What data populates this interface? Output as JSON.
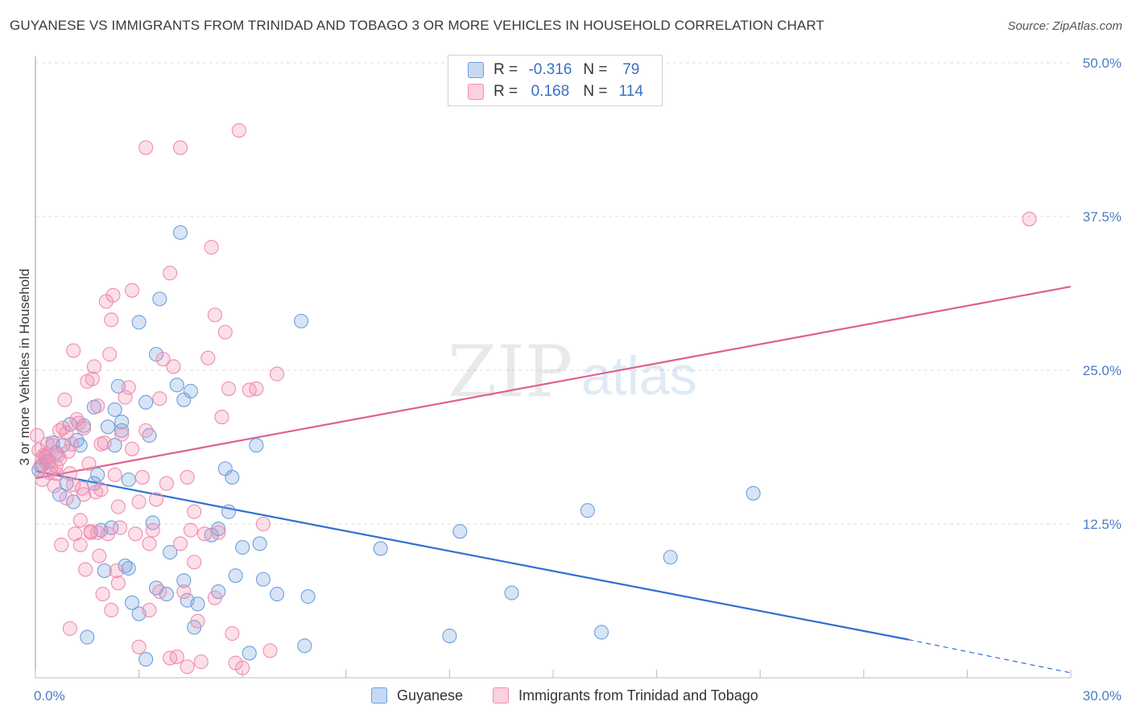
{
  "header": {
    "title": "GUYANESE VS IMMIGRANTS FROM TRINIDAD AND TOBAGO 3 OR MORE VEHICLES IN HOUSEHOLD CORRELATION CHART",
    "source": "Source: ZipAtlas.com"
  },
  "legend": {
    "r_label": "R =",
    "n_label": "N =",
    "rows": [
      {
        "r": "-0.316",
        "n": "79",
        "color": "#6f9fdc"
      },
      {
        "r": "0.168",
        "n": "114",
        "color": "#f08cb0"
      }
    ]
  },
  "watermark": {
    "zip": "ZIP",
    "atlas": "atlas"
  },
  "bottom_legend": [
    "Guyanese",
    "Immigrants from Trinidad and Tobago"
  ],
  "chart_data": {
    "type": "scatter",
    "ylabel": "3 or more Vehicles in Household",
    "xlabel": "",
    "xlim": [
      0,
      30
    ],
    "ylim": [
      0,
      50
    ],
    "x_tick_labels": [
      "0.0%",
      "30.0%"
    ],
    "y_tick_labels": [
      "12.5%",
      "25.0%",
      "37.5%",
      "50.0%"
    ],
    "y_ticks": [
      12.5,
      25.0,
      37.5,
      50.0
    ],
    "grid": true,
    "series": [
      {
        "name": "Guyanese",
        "color": "#6f9fdc",
        "line_color": "#2f6fd0",
        "trend": {
          "x0": 0,
          "y0": 16.8,
          "x1": 25.3,
          "y1": 3.1,
          "dash_to_x": 30,
          "dash_to_y": 0.4
        },
        "points": [
          [
            0.1,
            16.9
          ],
          [
            0.2,
            17.3
          ],
          [
            0.3,
            17.9
          ],
          [
            0.4,
            17.6
          ],
          [
            0.5,
            19.1
          ],
          [
            0.6,
            18.3
          ],
          [
            0.7,
            14.9
          ],
          [
            0.8,
            18.9
          ],
          [
            0.9,
            15.8
          ],
          [
            1.0,
            20.6
          ],
          [
            1.1,
            14.3
          ],
          [
            1.2,
            19.3
          ],
          [
            1.3,
            18.9
          ],
          [
            1.4,
            20.5
          ],
          [
            1.5,
            3.3
          ],
          [
            1.7,
            15.8
          ],
          [
            1.7,
            22.0
          ],
          [
            1.8,
            16.5
          ],
          [
            1.9,
            12.0
          ],
          [
            2.0,
            8.7
          ],
          [
            2.1,
            20.4
          ],
          [
            2.2,
            12.2
          ],
          [
            2.3,
            18.9
          ],
          [
            2.3,
            21.8
          ],
          [
            2.4,
            23.7
          ],
          [
            2.5,
            20.8
          ],
          [
            2.5,
            20.1
          ],
          [
            2.6,
            9.1
          ],
          [
            2.7,
            8.9
          ],
          [
            2.7,
            16.1
          ],
          [
            2.8,
            6.1
          ],
          [
            3.0,
            5.2
          ],
          [
            3.0,
            28.9
          ],
          [
            3.2,
            1.5
          ],
          [
            3.2,
            22.4
          ],
          [
            3.3,
            19.7
          ],
          [
            3.4,
            12.6
          ],
          [
            3.5,
            7.3
          ],
          [
            3.5,
            26.3
          ],
          [
            3.6,
            30.8
          ],
          [
            3.8,
            6.8
          ],
          [
            3.9,
            10.2
          ],
          [
            4.1,
            23.8
          ],
          [
            4.2,
            36.2
          ],
          [
            4.3,
            22.6
          ],
          [
            4.3,
            7.9
          ],
          [
            4.4,
            6.3
          ],
          [
            4.5,
            23.3
          ],
          [
            4.6,
            4.1
          ],
          [
            4.7,
            6.0
          ],
          [
            5.1,
            11.6
          ],
          [
            5.3,
            12.1
          ],
          [
            5.3,
            7.0
          ],
          [
            5.5,
            17.0
          ],
          [
            5.6,
            13.5
          ],
          [
            5.7,
            16.3
          ],
          [
            5.8,
            8.3
          ],
          [
            6.0,
            10.6
          ],
          [
            6.2,
            2.0
          ],
          [
            6.4,
            18.9
          ],
          [
            6.5,
            10.9
          ],
          [
            6.6,
            8.0
          ],
          [
            7.0,
            6.8
          ],
          [
            7.7,
            29.0
          ],
          [
            7.8,
            2.6
          ],
          [
            7.9,
            6.6
          ],
          [
            10.0,
            10.5
          ],
          [
            12.0,
            3.4
          ],
          [
            12.3,
            11.9
          ],
          [
            13.8,
            6.9
          ],
          [
            16.0,
            13.6
          ],
          [
            16.4,
            3.7
          ],
          [
            18.4,
            9.8
          ],
          [
            20.8,
            15.0
          ]
        ]
      },
      {
        "name": "Immigrants from Trinidad and Tobago",
        "color": "#f08cb0",
        "line_color": "#e0608e",
        "trend": {
          "x0": 0,
          "y0": 16.2,
          "x1": 30,
          "y1": 31.8
        },
        "points": [
          [
            0.05,
            19.7
          ],
          [
            0.1,
            18.5
          ],
          [
            0.15,
            17.2
          ],
          [
            0.2,
            16.1
          ],
          [
            0.25,
            18.1
          ],
          [
            0.3,
            17.6
          ],
          [
            0.35,
            19.0
          ],
          [
            0.4,
            16.7
          ],
          [
            0.45,
            17.0
          ],
          [
            0.5,
            18.9
          ],
          [
            0.55,
            15.6
          ],
          [
            0.6,
            16.6
          ],
          [
            0.65,
            18.1
          ],
          [
            0.7,
            17.8
          ],
          [
            0.75,
            10.8
          ],
          [
            0.8,
            20.3
          ],
          [
            0.85,
            22.6
          ],
          [
            0.9,
            14.6
          ],
          [
            0.95,
            18.4
          ],
          [
            1.0,
            4.0
          ],
          [
            1.05,
            19.0
          ],
          [
            1.1,
            26.6
          ],
          [
            1.15,
            11.7
          ],
          [
            1.2,
            21.0
          ],
          [
            1.25,
            20.7
          ],
          [
            1.3,
            10.8
          ],
          [
            1.35,
            15.4
          ],
          [
            1.4,
            20.3
          ],
          [
            1.45,
            8.8
          ],
          [
            1.5,
            24.1
          ],
          [
            1.55,
            17.4
          ],
          [
            1.6,
            11.9
          ],
          [
            1.65,
            24.3
          ],
          [
            1.7,
            25.3
          ],
          [
            1.75,
            15.1
          ],
          [
            1.8,
            11.8
          ],
          [
            1.85,
            9.9
          ],
          [
            1.9,
            19.0
          ],
          [
            1.95,
            6.8
          ],
          [
            2.0,
            19.1
          ],
          [
            2.05,
            30.6
          ],
          [
            2.1,
            11.7
          ],
          [
            2.15,
            26.3
          ],
          [
            2.2,
            29.1
          ],
          [
            2.25,
            31.1
          ],
          [
            2.3,
            16.5
          ],
          [
            2.35,
            8.7
          ],
          [
            2.4,
            7.7
          ],
          [
            2.45,
            12.2
          ],
          [
            2.5,
            19.8
          ],
          [
            2.6,
            22.8
          ],
          [
            2.7,
            23.6
          ],
          [
            2.8,
            31.5
          ],
          [
            2.9,
            11.7
          ],
          [
            3.0,
            2.5
          ],
          [
            3.1,
            16.3
          ],
          [
            3.2,
            20.1
          ],
          [
            3.3,
            5.5
          ],
          [
            3.4,
            12.0
          ],
          [
            3.5,
            14.5
          ],
          [
            3.6,
            22.7
          ],
          [
            3.7,
            25.9
          ],
          [
            3.8,
            15.8
          ],
          [
            3.9,
            32.9
          ],
          [
            4.0,
            25.3
          ],
          [
            4.1,
            1.7
          ],
          [
            4.2,
            10.9
          ],
          [
            4.3,
            7.0
          ],
          [
            4.4,
            16.3
          ],
          [
            4.5,
            12.0
          ],
          [
            4.6,
            13.5
          ],
          [
            4.7,
            4.6
          ],
          [
            4.8,
            1.3
          ],
          [
            4.9,
            11.7
          ],
          [
            5.0,
            26.0
          ],
          [
            5.1,
            35.0
          ],
          [
            5.2,
            29.5
          ],
          [
            5.3,
            11.8
          ],
          [
            5.4,
            21.2
          ],
          [
            5.5,
            28.1
          ],
          [
            5.6,
            23.5
          ],
          [
            5.7,
            3.6
          ],
          [
            5.8,
            1.2
          ],
          [
            5.9,
            44.5
          ],
          [
            6.0,
            0.8
          ],
          [
            6.2,
            23.4
          ],
          [
            6.4,
            23.5
          ],
          [
            6.6,
            12.5
          ],
          [
            6.8,
            2.2
          ],
          [
            7.0,
            24.7
          ],
          [
            3.2,
            43.1
          ],
          [
            4.2,
            43.1
          ],
          [
            28.8,
            37.3
          ],
          [
            0.3,
            18.0
          ],
          [
            0.6,
            17.2
          ],
          [
            1.0,
            16.6
          ],
          [
            1.4,
            14.9
          ],
          [
            0.2,
            17.9
          ],
          [
            0.9,
            19.9
          ],
          [
            1.1,
            15.7
          ],
          [
            1.6,
            11.8
          ],
          [
            2.2,
            5.5
          ],
          [
            3.6,
            7.0
          ],
          [
            4.6,
            9.4
          ],
          [
            5.2,
            6.5
          ],
          [
            3.0,
            14.3
          ],
          [
            2.4,
            13.9
          ],
          [
            1.3,
            12.8
          ],
          [
            3.9,
            1.6
          ],
          [
            4.4,
            0.9
          ],
          [
            1.9,
            15.3
          ],
          [
            0.7,
            20.1
          ],
          [
            2.8,
            18.6
          ],
          [
            3.3,
            10.9
          ],
          [
            1.8,
            22.1
          ]
        ]
      }
    ]
  }
}
